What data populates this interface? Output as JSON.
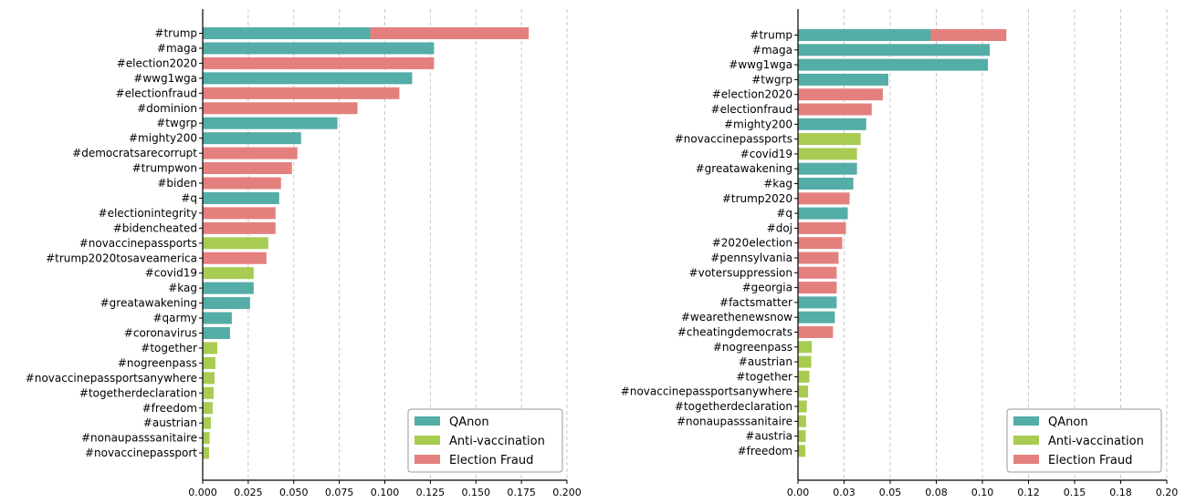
{
  "chart_data": [
    {
      "type": "bar",
      "orientation": "horizontal",
      "stacked": true,
      "xlim": [
        0,
        0.2
      ],
      "xticks": [
        "0.000",
        "0.025",
        "0.050",
        "0.075",
        "0.100",
        "0.125",
        "0.150",
        "0.175",
        "0.200"
      ],
      "grid": "vertical dashed",
      "legend_placement": "bottom-right",
      "categories": [
        "#trump",
        "#maga",
        "#election2020",
        "#wwg1wga",
        "#electionfraud",
        "#dominion",
        "#twgrp",
        "#mighty200",
        "#democratsarecorrupt",
        "#trumpwon",
        "#biden",
        "#q",
        "#electionintegrity",
        "#bidencheated",
        "#novaccinepassports",
        "#trump2020tosaveamerica",
        "#covid19",
        "#kag",
        "#greatawakening",
        "#qarmy",
        "#coronavirus",
        "#together",
        "#nogreenpass",
        "#novaccinepassportsanywhere",
        "#togetherdeclaration",
        "#freedom",
        "#austrian",
        "#nonaupasssanitaire",
        "#novaccinepassport"
      ],
      "series": [
        {
          "name": "QAnon",
          "values": [
            0.092,
            0.127,
            0,
            0.115,
            0,
            0,
            0.074,
            0.054,
            0,
            0,
            0,
            0.042,
            0,
            0,
            0,
            0,
            0,
            0.028,
            0.026,
            0.016,
            0.015,
            0,
            0,
            0,
            0,
            0,
            0,
            0,
            0
          ]
        },
        {
          "name": "Anti-vaccination",
          "values": [
            0,
            0,
            0,
            0,
            0,
            0,
            0,
            0,
            0,
            0,
            0,
            0,
            0,
            0,
            0.036,
            0,
            0.028,
            0,
            0,
            0,
            0,
            0.008,
            0.007,
            0.0065,
            0.006,
            0.0055,
            0.0045,
            0.0038,
            0.0035
          ]
        },
        {
          "name": "Election Fraud",
          "values": [
            0.087,
            0,
            0.127,
            0,
            0.108,
            0.085,
            0,
            0,
            0.052,
            0.049,
            0.043,
            0,
            0.04,
            0.04,
            0,
            0.035,
            0,
            0,
            0,
            0,
            0,
            0,
            0,
            0,
            0,
            0,
            0,
            0,
            0
          ]
        }
      ],
      "legend": [
        "QAnon",
        "Anti-vaccination",
        "Election Fraud"
      ]
    },
    {
      "type": "bar",
      "orientation": "horizontal",
      "stacked": true,
      "xlim": [
        0,
        0.2
      ],
      "xticks": [
        "0.00",
        "0.03",
        "0.05",
        "0.08",
        "0.10",
        "0.12",
        "0.15",
        "0.18",
        "0.20"
      ],
      "grid": "vertical dashed",
      "legend_placement": "bottom-right",
      "categories": [
        "#trump",
        "#maga",
        "#wwg1wga",
        "#twgrp",
        "#election2020",
        "#electionfraud",
        "#mighty200",
        "#novaccinepassports",
        "#covid19",
        "#greatawakening",
        "#kag",
        "#trump2020",
        "#q",
        "#doj",
        "#2020election",
        "#pennsylvania",
        "#votersuppression",
        "#georgia",
        "#factsmatter",
        "#wearethenewsnow",
        "#cheatingdemocrats",
        "#nogreenpass",
        "#austrian",
        "#together",
        "#novaccinepassportsanywhere",
        "#togetherdeclaration",
        "#nonaupasssanitaire",
        "#austria",
        "#freedom"
      ],
      "series": [
        {
          "name": "QAnon",
          "values": [
            0.072,
            0.104,
            0.103,
            0.049,
            0,
            0,
            0.037,
            0,
            0,
            0.032,
            0.03,
            0,
            0.027,
            0,
            0,
            0,
            0,
            0,
            0.021,
            0.02,
            0,
            0,
            0,
            0,
            0,
            0,
            0,
            0,
            0
          ]
        },
        {
          "name": "Anti-vaccination",
          "values": [
            0,
            0,
            0,
            0,
            0,
            0,
            0,
            0.034,
            0.032,
            0,
            0,
            0,
            0,
            0,
            0,
            0,
            0,
            0,
            0,
            0,
            0,
            0.0075,
            0.0072,
            0.0062,
            0.0055,
            0.0048,
            0.0044,
            0.0042,
            0.004
          ]
        },
        {
          "name": "Election Fraud",
          "values": [
            0.041,
            0,
            0,
            0,
            0.046,
            0.04,
            0,
            0,
            0,
            0,
            0,
            0.028,
            0,
            0.026,
            0.024,
            0.022,
            0.021,
            0.021,
            0,
            0,
            0.019,
            0,
            0,
            0,
            0,
            0,
            0,
            0,
            0
          ]
        }
      ],
      "legend": [
        "QAnon",
        "Anti-vaccination",
        "Election Fraud"
      ]
    }
  ],
  "colors": {
    "QAnon": "#54ada6",
    "Anti-vaccination": "#a8cc52",
    "Election Fraud": "#e3807e",
    "grid": "#c8c8c8",
    "axis": "#000000"
  }
}
